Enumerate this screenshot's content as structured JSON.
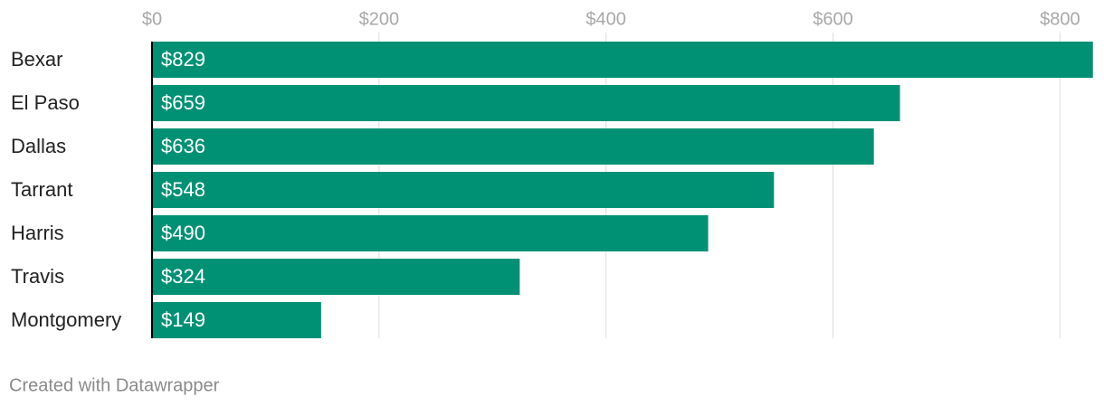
{
  "chart_data": {
    "type": "hbar",
    "categories": [
      "Bexar",
      "El Paso",
      "Dallas",
      "Tarrant",
      "Harris",
      "Travis",
      "Montgomery"
    ],
    "values": [
      829,
      659,
      636,
      548,
      490,
      324,
      149
    ],
    "value_labels": [
      "$829",
      "$659",
      "$636",
      "$548",
      "$490",
      "$324",
      "$149"
    ],
    "color": "#009175",
    "xlim": [
      0,
      830
    ],
    "xticks": [
      {
        "value": 0,
        "label": "$0"
      },
      {
        "value": 200,
        "label": "$200"
      },
      {
        "value": 400,
        "label": "$400"
      },
      {
        "value": 600,
        "label": "$600"
      },
      {
        "value": 800,
        "label": "$800"
      }
    ],
    "grid": true,
    "footer": "Created with Datawrapper"
  }
}
